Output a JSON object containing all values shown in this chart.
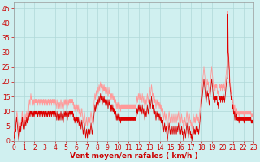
{
  "title": "",
  "xlabel": "Vent moyen/en rafales ( km/h )",
  "bg_color": "#d0f0f0",
  "grid_color": "#b0d8d8",
  "line1_color": "#dd0000",
  "line2_color": "#ff9999",
  "xlim": [
    0,
    23
  ],
  "ylim": [
    0,
    47
  ],
  "yticks": [
    0,
    5,
    10,
    15,
    20,
    25,
    30,
    35,
    40,
    45
  ],
  "xticks": [
    0,
    1,
    2,
    3,
    4,
    5,
    6,
    7,
    8,
    9,
    10,
    11,
    12,
    13,
    14,
    15,
    16,
    17,
    18,
    19,
    20,
    21,
    22,
    23
  ],
  "line1_y": [
    0,
    1,
    1,
    2,
    3,
    2,
    4,
    3,
    5,
    6,
    7,
    8,
    7,
    6,
    5,
    4,
    3,
    2,
    1,
    0,
    1,
    2,
    4,
    3,
    5,
    4,
    3,
    5,
    6,
    5,
    7,
    8,
    7,
    6,
    5,
    4,
    5,
    6,
    5,
    4,
    5,
    6,
    7,
    6,
    5,
    6,
    7,
    8,
    7,
    6,
    7,
    8,
    9,
    8,
    7,
    8,
    9,
    10,
    9,
    8,
    9,
    10,
    10,
    9,
    10,
    9,
    8,
    9,
    10,
    9,
    8,
    9,
    10,
    9,
    8,
    9,
    10,
    9,
    10,
    9,
    10,
    9,
    10,
    9,
    10,
    10,
    9,
    8,
    9,
    10,
    10,
    9,
    10,
    9,
    8,
    9,
    10,
    9,
    10,
    10,
    9,
    10,
    10,
    9,
    8,
    9,
    10,
    9,
    10,
    9,
    8,
    9,
    10,
    9,
    10,
    9,
    10,
    9,
    8,
    9,
    10,
    9,
    8,
    9,
    10,
    9,
    10,
    9,
    8,
    9,
    10,
    9,
    10,
    9,
    10,
    9,
    8,
    9,
    10,
    9,
    10,
    9,
    10,
    9,
    8,
    9,
    10,
    9,
    10,
    9,
    8,
    9,
    10,
    9,
    8,
    7,
    8,
    9,
    10,
    9,
    8,
    9,
    8,
    7,
    8,
    9,
    8,
    7,
    8,
    9,
    10,
    9,
    8,
    7,
    8,
    9,
    8,
    7,
    6,
    7,
    8,
    9,
    10,
    9,
    8,
    9,
    10,
    9,
    8,
    9,
    10,
    9,
    8,
    7,
    8,
    9,
    10,
    9,
    8,
    9,
    10,
    9,
    10,
    9,
    10,
    9,
    8,
    9,
    10,
    9,
    10,
    9,
    10,
    9,
    8,
    9,
    8,
    7,
    8,
    7,
    6,
    7,
    8,
    7,
    6,
    7,
    8,
    7,
    8,
    7,
    6,
    7,
    8,
    7,
    6,
    5,
    6,
    7,
    8,
    7,
    6,
    5,
    4,
    5,
    6,
    7,
    6,
    5,
    4,
    3,
    2,
    3,
    4,
    5,
    6,
    5,
    4,
    3,
    2,
    1,
    2,
    3,
    4,
    3,
    2,
    1,
    2,
    3,
    4,
    3,
    2,
    3,
    4,
    3,
    2,
    3,
    4,
    5,
    6,
    5,
    4,
    3,
    2,
    3,
    4,
    5,
    6,
    7,
    8,
    9,
    10,
    11,
    12,
    11,
    10,
    11,
    12,
    13,
    12,
    11,
    12,
    13,
    14,
    13,
    12,
    13,
    14,
    15,
    14,
    13,
    14,
    15,
    16,
    15,
    14,
    15,
    14,
    13,
    12,
    13,
    14,
    15,
    14,
    13,
    14,
    15,
    14,
    13,
    14,
    13,
    12,
    13,
    14,
    13,
    12,
    13,
    14,
    13,
    12,
    11,
    12,
    13,
    14,
    13,
    12,
    13,
    12,
    11,
    12,
    11,
    10,
    11,
    12,
    11,
    10,
    11,
    12,
    11,
    10,
    11,
    10,
    9,
    10,
    11,
    10,
    9,
    10,
    9,
    8,
    7,
    8,
    9,
    8,
    7,
    8,
    9,
    8,
    7,
    8,
    9,
    8,
    7,
    8,
    7,
    6,
    7,
    8,
    7,
    8,
    7,
    8,
    7,
    8,
    7,
    8,
    7,
    8,
    7,
    8,
    7,
    8,
    7,
    8,
    7,
    8,
    7,
    8,
    7,
    8,
    7,
    8,
    7,
    8,
    7,
    8,
    7,
    8,
    7,
    8,
    7,
    8,
    7,
    8,
    7,
    8,
    7,
    8,
    7,
    8,
    7,
    8,
    7,
    8,
    7,
    8,
    7,
    8,
    7,
    8,
    7,
    8,
    9,
    10,
    11,
    10,
    9,
    10,
    11,
    12,
    11,
    10,
    11,
    12,
    11,
    10,
    11,
    12,
    11,
    10,
    9,
    10,
    11,
    12,
    11,
    10,
    9,
    10,
    11,
    10,
    9,
    8,
    7,
    8,
    9,
    10,
    9,
    8,
    9,
    10,
    11,
    12,
    11,
    10,
    9,
    10,
    11,
    12,
    13,
    14,
    13,
    12,
    11,
    12,
    13,
    14,
    15,
    14,
    13,
    12,
    11,
    12,
    11,
    10,
    9,
    10,
    11,
    10,
    9,
    10,
    9,
    8,
    7,
    8,
    9,
    10,
    9,
    8,
    9,
    10,
    9,
    8,
    9,
    8,
    7,
    8,
    9,
    8,
    7,
    8,
    7,
    6,
    7,
    8,
    7,
    6,
    7,
    6,
    5,
    4,
    3,
    4,
    5,
    6,
    5,
    4,
    3,
    4,
    5,
    4,
    3,
    2,
    1,
    0,
    1,
    2,
    3,
    4,
    5,
    6,
    5,
    4,
    3,
    2,
    3,
    4,
    3,
    2,
    3,
    4,
    5,
    4,
    3,
    2,
    3,
    4,
    5,
    4,
    3,
    2,
    3,
    4,
    5,
    4,
    3,
    2,
    3,
    4,
    5,
    4,
    3,
    4,
    5,
    6,
    5,
    4,
    3,
    2,
    3,
    4,
    3,
    2,
    3,
    4,
    5,
    4,
    3,
    2,
    3,
    2,
    1,
    0,
    1,
    2,
    3,
    4,
    3,
    2,
    1,
    2,
    3,
    4,
    5,
    6,
    5,
    4,
    3,
    2,
    1,
    2,
    3,
    4,
    5,
    4,
    3,
    2,
    3,
    2,
    1,
    2,
    1,
    0,
    1,
    2,
    3,
    4,
    5,
    4,
    3,
    2,
    3,
    4,
    3,
    2,
    3,
    4,
    5,
    4,
    3,
    4,
    5,
    4,
    3,
    4,
    3,
    2,
    3,
    4,
    5,
    6,
    7,
    8,
    9,
    10,
    11,
    12,
    13,
    14,
    15,
    16,
    17,
    18,
    19,
    20,
    21,
    20,
    19,
    18,
    17,
    16,
    15,
    14,
    13,
    14,
    15,
    16,
    17,
    16,
    15,
    16,
    15,
    14,
    13,
    12,
    13,
    14,
    15,
    16,
    17,
    18,
    19,
    20,
    21,
    20,
    19,
    18,
    17,
    16,
    15,
    14,
    15,
    14,
    15,
    14,
    13,
    14,
    15,
    14,
    15,
    14,
    15,
    14,
    13,
    12,
    13,
    12,
    11,
    12,
    13,
    14,
    15,
    14,
    15,
    14,
    13,
    14,
    15,
    14,
    15,
    14,
    13,
    14,
    15,
    16,
    15,
    14,
    15,
    14,
    13,
    14,
    15,
    16,
    17,
    18,
    19,
    20,
    21,
    22,
    21,
    43,
    42,
    30,
    29,
    28,
    25,
    24,
    20,
    19,
    18,
    17,
    16,
    15,
    14,
    15,
    14,
    13,
    12,
    11,
    12,
    11,
    10,
    9,
    10,
    9,
    8,
    7,
    8,
    9,
    10,
    9,
    8,
    9,
    8,
    7,
    8,
    7,
    8,
    7,
    8,
    7,
    6,
    7,
    8,
    7,
    8,
    7,
    8,
    7,
    8,
    7,
    8,
    7,
    8,
    7,
    8,
    7,
    8,
    7,
    6,
    7,
    8,
    7,
    8,
    7,
    8,
    7,
    8,
    7,
    8,
    7,
    8,
    7,
    8,
    7,
    8,
    7,
    8,
    7,
    8,
    7,
    8,
    7,
    8,
    7,
    6,
    7,
    6,
    7,
    6,
    7,
    6,
    7,
    6,
    7
  ],
  "line2_y": [
    1,
    2,
    2,
    3,
    4,
    3,
    5,
    4,
    6,
    7,
    8,
    9,
    10,
    9,
    8,
    7,
    6,
    5,
    4,
    3,
    2,
    3,
    5,
    4,
    6,
    5,
    4,
    6,
    7,
    6,
    9,
    10,
    9,
    8,
    7,
    6,
    7,
    8,
    7,
    6,
    7,
    8,
    9,
    8,
    7,
    8,
    9,
    10,
    9,
    8,
    9,
    10,
    12,
    11,
    10,
    12,
    13,
    14,
    13,
    12,
    14,
    15,
    16,
    15,
    14,
    15,
    14,
    13,
    14,
    13,
    12,
    13,
    14,
    13,
    12,
    13,
    14,
    13,
    14,
    13,
    14,
    13,
    14,
    13,
    14,
    14,
    13,
    12,
    13,
    14,
    14,
    13,
    14,
    13,
    12,
    13,
    14,
    13,
    14,
    14,
    13,
    14,
    14,
    13,
    12,
    13,
    14,
    13,
    14,
    13,
    12,
    13,
    14,
    13,
    14,
    13,
    14,
    13,
    12,
    13,
    14,
    13,
    12,
    13,
    14,
    13,
    14,
    13,
    12,
    13,
    14,
    13,
    14,
    13,
    14,
    13,
    12,
    13,
    14,
    13,
    14,
    13,
    14,
    13,
    12,
    13,
    14,
    13,
    14,
    13,
    12,
    13,
    14,
    13,
    12,
    11,
    12,
    13,
    14,
    13,
    12,
    13,
    12,
    11,
    12,
    13,
    12,
    11,
    12,
    13,
    14,
    13,
    12,
    11,
    12,
    13,
    12,
    11,
    10,
    11,
    12,
    13,
    14,
    13,
    12,
    13,
    14,
    13,
    12,
    13,
    14,
    13,
    12,
    11,
    12,
    13,
    14,
    13,
    12,
    13,
    14,
    13,
    14,
    13,
    14,
    13,
    12,
    13,
    14,
    13,
    14,
    13,
    14,
    13,
    12,
    13,
    12,
    11,
    12,
    11,
    10,
    11,
    12,
    11,
    10,
    11,
    12,
    11,
    12,
    11,
    10,
    11,
    12,
    11,
    10,
    9,
    10,
    11,
    12,
    11,
    10,
    9,
    8,
    9,
    10,
    11,
    10,
    9,
    8,
    7,
    6,
    7,
    8,
    9,
    10,
    9,
    8,
    7,
    6,
    5,
    6,
    7,
    8,
    7,
    6,
    5,
    6,
    7,
    8,
    7,
    6,
    7,
    8,
    7,
    6,
    7,
    8,
    9,
    10,
    9,
    8,
    7,
    6,
    7,
    8,
    9,
    10,
    11,
    12,
    13,
    14,
    15,
    16,
    15,
    14,
    15,
    16,
    17,
    16,
    15,
    16,
    17,
    18,
    17,
    16,
    17,
    18,
    19,
    18,
    17,
    18,
    19,
    20,
    19,
    18,
    19,
    18,
    17,
    16,
    17,
    18,
    19,
    18,
    17,
    18,
    19,
    18,
    17,
    18,
    17,
    16,
    17,
    18,
    17,
    16,
    17,
    18,
    17,
    16,
    15,
    16,
    17,
    18,
    17,
    16,
    17,
    16,
    15,
    16,
    15,
    14,
    15,
    16,
    15,
    14,
    15,
    16,
    15,
    14,
    15,
    14,
    13,
    14,
    15,
    14,
    13,
    14,
    13,
    12,
    11,
    12,
    13,
    12,
    11,
    12,
    13,
    12,
    11,
    12,
    13,
    12,
    11,
    12,
    11,
    10,
    11,
    12,
    11,
    12,
    11,
    12,
    11,
    12,
    11,
    12,
    11,
    12,
    11,
    12,
    11,
    12,
    11,
    12,
    11,
    12,
    11,
    12,
    11,
    12,
    11,
    12,
    11,
    12,
    11,
    12,
    11,
    12,
    11,
    12,
    11,
    12,
    11,
    12,
    11,
    12,
    11,
    12,
    11,
    12,
    11,
    12,
    11,
    12,
    11,
    12,
    11,
    12,
    11,
    12,
    11,
    12,
    13,
    14,
    15,
    14,
    13,
    14,
    15,
    16,
    15,
    14,
    15,
    16,
    15,
    14,
    15,
    16,
    15,
    14,
    13,
    14,
    15,
    16,
    15,
    14,
    13,
    14,
    15,
    14,
    13,
    12,
    11,
    12,
    13,
    14,
    13,
    12,
    13,
    14,
    15,
    16,
    15,
    14,
    13,
    14,
    15,
    16,
    17,
    18,
    17,
    16,
    15,
    16,
    17,
    18,
    19,
    18,
    17,
    16,
    15,
    16,
    15,
    14,
    13,
    14,
    15,
    14,
    13,
    14,
    13,
    12,
    11,
    12,
    13,
    14,
    13,
    12,
    13,
    14,
    13,
    12,
    13,
    12,
    11,
    12,
    13,
    12,
    11,
    12,
    11,
    10,
    11,
    12,
    11,
    10,
    11,
    10,
    9,
    8,
    7,
    8,
    9,
    10,
    9,
    8,
    7,
    8,
    9,
    8,
    7,
    6,
    5,
    4,
    5,
    6,
    7,
    8,
    9,
    10,
    9,
    8,
    7,
    6,
    7,
    8,
    7,
    6,
    7,
    8,
    9,
    8,
    7,
    6,
    7,
    8,
    9,
    8,
    7,
    6,
    7,
    8,
    9,
    8,
    7,
    6,
    7,
    8,
    9,
    8,
    7,
    8,
    9,
    10,
    9,
    8,
    7,
    6,
    7,
    8,
    7,
    6,
    7,
    8,
    9,
    8,
    7,
    6,
    7,
    6,
    5,
    4,
    5,
    6,
    7,
    8,
    7,
    6,
    5,
    6,
    7,
    8,
    9,
    10,
    9,
    8,
    7,
    6,
    5,
    6,
    7,
    8,
    9,
    8,
    7,
    6,
    7,
    6,
    5,
    6,
    5,
    4,
    5,
    6,
    7,
    8,
    9,
    8,
    7,
    6,
    7,
    8,
    7,
    6,
    7,
    8,
    9,
    8,
    7,
    8,
    9,
    8,
    7,
    8,
    7,
    6,
    7,
    8,
    9,
    10,
    11,
    12,
    13,
    14,
    15,
    16,
    17,
    18,
    19,
    20,
    21,
    22,
    23,
    24,
    25,
    24,
    23,
    22,
    21,
    20,
    19,
    18,
    17,
    18,
    19,
    20,
    21,
    20,
    19,
    20,
    19,
    18,
    17,
    16,
    17,
    18,
    19,
    20,
    21,
    22,
    23,
    24,
    25,
    24,
    23,
    22,
    21,
    20,
    19,
    18,
    19,
    18,
    19,
    18,
    17,
    18,
    19,
    18,
    19,
    18,
    19,
    18,
    17,
    16,
    17,
    16,
    15,
    16,
    17,
    18,
    19,
    18,
    19,
    18,
    17,
    18,
    19,
    18,
    19,
    18,
    17,
    18,
    19,
    20,
    19,
    18,
    19,
    18,
    17,
    18,
    19,
    20,
    21,
    22,
    23,
    24,
    25,
    26,
    25,
    44,
    43,
    31,
    30,
    29,
    26,
    25,
    22,
    21,
    20,
    19,
    18,
    17,
    16,
    17,
    16,
    15,
    14,
    13,
    14,
    13,
    12,
    11,
    12,
    11,
    10,
    9,
    10,
    11,
    12,
    11,
    10,
    11,
    10,
    9,
    10,
    9,
    10,
    9,
    10,
    9,
    8,
    9,
    10,
    9,
    10,
    9,
    10,
    9,
    10,
    9,
    10,
    9,
    10,
    9,
    10,
    9,
    10,
    9,
    8,
    9,
    10,
    9,
    10,
    9,
    10,
    9,
    10,
    9,
    10,
    9,
    10,
    9,
    10,
    9,
    10,
    9,
    10,
    9,
    10,
    9,
    10,
    9,
    10,
    9,
    8,
    9,
    8,
    9,
    8,
    9,
    8,
    9,
    8,
    9
  ]
}
